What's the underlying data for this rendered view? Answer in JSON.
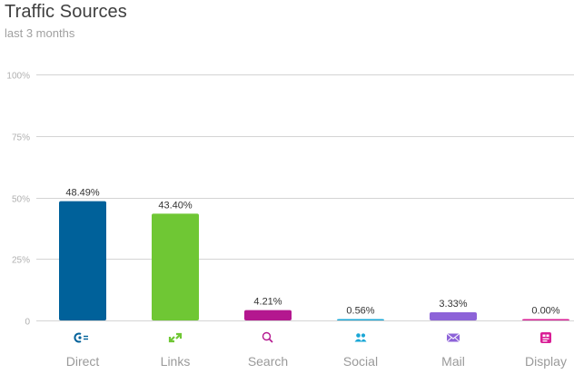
{
  "header": {
    "title": "Traffic Sources",
    "subtitle": "last 3 months"
  },
  "chart_data": {
    "type": "bar",
    "title": "Traffic Sources",
    "subtitle": "last 3 months",
    "categories": [
      "Direct",
      "Links",
      "Search",
      "Social",
      "Mail",
      "Display"
    ],
    "values": [
      48.49,
      43.4,
      4.21,
      0.56,
      3.33,
      0.0
    ],
    "value_labels": [
      "48.49%",
      "43.40%",
      "4.21%",
      "0.56%",
      "3.33%",
      "0.00%"
    ],
    "colors": [
      "#00619a",
      "#6fc734",
      "#b4178f",
      "#1aa7d6",
      "#8d63d8",
      "#d91d95"
    ],
    "icons": [
      "direct-icon",
      "links-icon",
      "search-icon",
      "social-icon",
      "mail-icon",
      "display-icon"
    ],
    "ylim": [
      0,
      100
    ],
    "yticks": [
      0,
      25,
      50,
      75,
      100
    ],
    "ytick_labels": [
      "0",
      "25%",
      "50%",
      "75%",
      "100%"
    ],
    "grid": true,
    "legend": "none"
  }
}
